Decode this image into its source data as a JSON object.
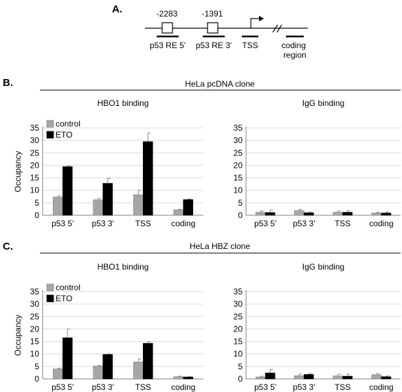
{
  "panel_a": {
    "letter": "A.",
    "positions": [
      "-2283",
      "-1391"
    ],
    "labels": [
      "p53  RE 5'",
      "p53  RE 3'",
      "TSS",
      "coding\nregion"
    ]
  },
  "panel_b": {
    "letter": "B.",
    "header": "HeLa pcDNA clone"
  },
  "panel_c": {
    "letter": "C.",
    "header": "HeLa HBZ clone"
  },
  "colors": {
    "control": "#a6a6a6",
    "eto": "#000000",
    "error_bar": "#808080",
    "axis": "#808080"
  },
  "chart_data": [
    {
      "type": "bar",
      "panel": "B",
      "title": "HBO1 binding",
      "ylabel": "Occupancy",
      "ylim": [
        0,
        35
      ],
      "yticks": [
        0,
        5,
        10,
        15,
        20,
        25,
        30,
        35
      ],
      "categories": [
        "p53  5'",
        "p53  3'",
        "TSS",
        "coding"
      ],
      "series": [
        {
          "name": "control",
          "values": [
            7.3,
            6.2,
            8.2,
            2.2
          ],
          "errors": [
            0.5,
            0.6,
            1.8,
            0.2
          ]
        },
        {
          "name": "ETO",
          "values": [
            19.5,
            12.8,
            29.5,
            6.3
          ],
          "errors": [
            0.4,
            2.0,
            3.5,
            0.3
          ]
        }
      ],
      "legend": "top-left"
    },
    {
      "type": "bar",
      "panel": "B",
      "title": "IgG binding",
      "ylabel": "",
      "ylim": [
        0,
        35
      ],
      "yticks": [
        0,
        5,
        10,
        15,
        20,
        25,
        30,
        35
      ],
      "categories": [
        "p53  5'",
        "p53  3'",
        "TSS",
        "coding"
      ],
      "series": [
        {
          "name": "control",
          "values": [
            1.2,
            1.9,
            1.2,
            0.9
          ],
          "errors": [
            0.5,
            0.5,
            0.5,
            0.3
          ]
        },
        {
          "name": "ETO",
          "values": [
            1.1,
            1.0,
            1.2,
            0.9
          ],
          "errors": [
            1.1,
            0.3,
            0.7,
            0.5
          ]
        }
      ]
    },
    {
      "type": "bar",
      "panel": "C",
      "title": "HBO1 binding",
      "ylabel": "Occupancy",
      "ylim": [
        0,
        35
      ],
      "yticks": [
        0,
        5,
        10,
        15,
        20,
        25,
        30,
        35
      ],
      "categories": [
        "p53  5'",
        "p53  3'",
        "TSS",
        "coding"
      ],
      "series": [
        {
          "name": "control",
          "values": [
            4.0,
            5.2,
            6.8,
            0.9
          ],
          "errors": [
            0.3,
            0.2,
            1.2,
            0.2
          ]
        },
        {
          "name": "ETO",
          "values": [
            16.5,
            9.8,
            14.3,
            0.8
          ],
          "errors": [
            3.5,
            0.3,
            0.7,
            0.2
          ]
        }
      ],
      "legend": "top-left"
    },
    {
      "type": "bar",
      "panel": "C",
      "title": "IgG binding",
      "ylabel": "",
      "ylim": [
        0,
        35
      ],
      "yticks": [
        0,
        5,
        10,
        15,
        20,
        25,
        30,
        35
      ],
      "categories": [
        "p53  5'",
        "p53  3'",
        "TSS",
        "coding"
      ],
      "series": [
        {
          "name": "control",
          "values": [
            0.8,
            1.3,
            1.2,
            1.7
          ],
          "errors": [
            0.3,
            0.7,
            0.7,
            0.5
          ]
        },
        {
          "name": "ETO",
          "values": [
            2.4,
            1.8,
            1.1,
            0.9
          ],
          "errors": [
            1.3,
            0.3,
            0.8,
            0.3
          ]
        }
      ]
    }
  ]
}
